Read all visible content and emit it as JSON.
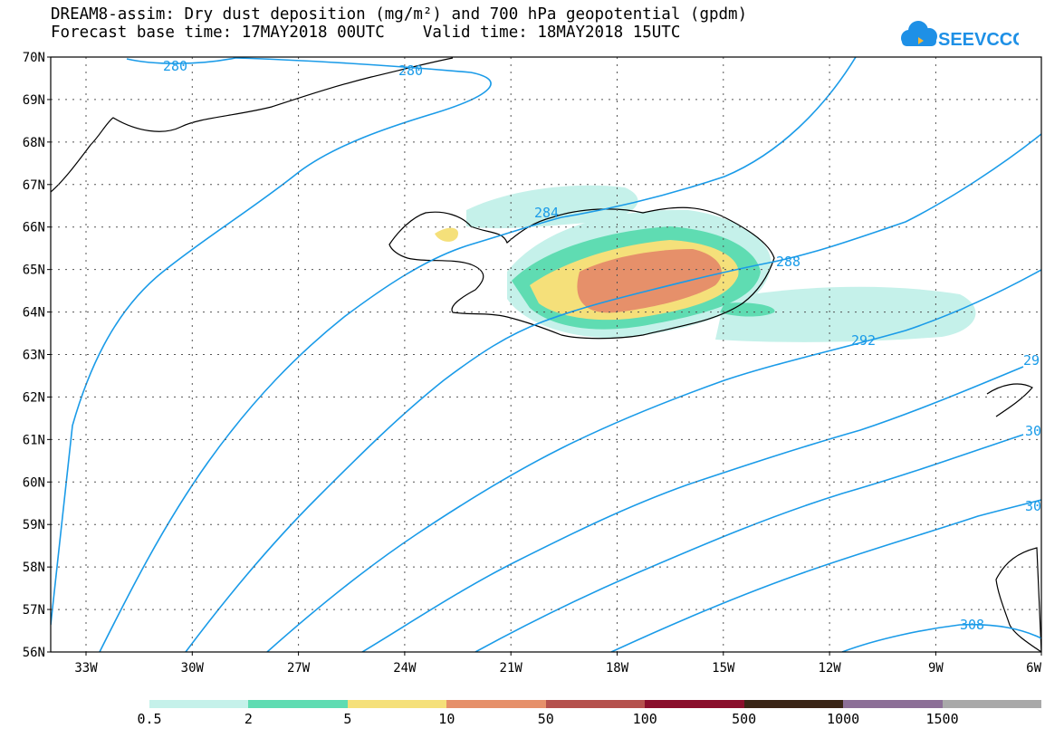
{
  "header": {
    "line1": "DREAM8-assim: Dry dust deposition (mg/m²) and 700 hPa geopotential (gpdm)",
    "line2": "Forecast base time: 17MAY2018 00UTC    Valid time: 18MAY2018 15UTC"
  },
  "logo": {
    "text": "SEEVCCC",
    "icon": "cloud-logo-icon",
    "color": "#1e90e6"
  },
  "map": {
    "lat_labels": [
      "70N",
      "69N",
      "68N",
      "67N",
      "66N",
      "65N",
      "64N",
      "63N",
      "62N",
      "61N",
      "60N",
      "59N",
      "58N",
      "57N",
      "56N"
    ],
    "lon_labels": [
      "33W",
      "30W",
      "27W",
      "24W",
      "21W",
      "18W",
      "15W",
      "12W",
      "9W",
      "6W"
    ],
    "contour_color": "#1a9be8",
    "contour_labels": [
      "280",
      "280",
      "284",
      "288",
      "292",
      "29",
      "30",
      "30",
      "308"
    ]
  },
  "legend": {
    "colors": [
      "#c5f1ea",
      "#5fdcb2",
      "#f5e07a",
      "#e6906a",
      "#b5514d",
      "#8a0f2c",
      "#3a2516",
      "#8c6f97",
      "#a9a9a9"
    ],
    "labels": [
      "0.5",
      "2",
      "5",
      "10",
      "50",
      "100",
      "500",
      "1000",
      "1500"
    ]
  }
}
